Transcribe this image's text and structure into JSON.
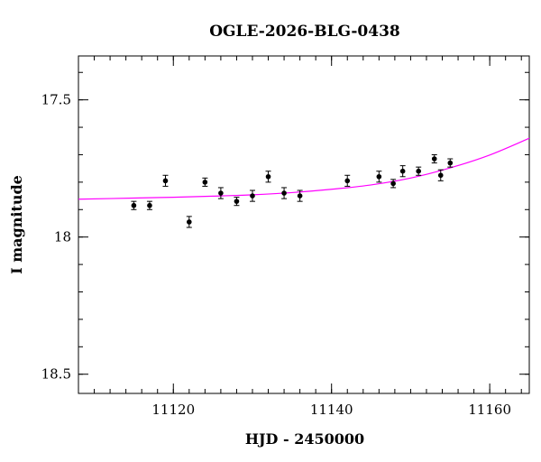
{
  "chart_data": {
    "type": "scatter",
    "title": "OGLE-2026-BLG-0438",
    "xlabel": "HJD - 2450000",
    "ylabel": "I magnitude",
    "xlim": [
      11108,
      11165
    ],
    "ylim": [
      18.57,
      17.34
    ],
    "y_inverted": true,
    "x_ticks": [
      11120,
      11140,
      11160
    ],
    "x_tick_labels": [
      "11120",
      "11140",
      "11160"
    ],
    "x_minor_step": 2,
    "y_ticks": [
      17.5,
      18,
      18.5
    ],
    "y_tick_labels": [
      "17.5",
      "18",
      "18.5"
    ],
    "y_minor_step": 0.1,
    "grid": false,
    "legend": "none",
    "series": [
      {
        "kind": "points_with_errorbars",
        "color": "#000000",
        "points": [
          {
            "x": 11115.0,
            "y": 17.885,
            "err": 0.015
          },
          {
            "x": 11117.0,
            "y": 17.885,
            "err": 0.015
          },
          {
            "x": 11119.0,
            "y": 17.795,
            "err": 0.02
          },
          {
            "x": 11122.0,
            "y": 17.945,
            "err": 0.02
          },
          {
            "x": 11124.0,
            "y": 17.8,
            "err": 0.015
          },
          {
            "x": 11126.0,
            "y": 17.84,
            "err": 0.02
          },
          {
            "x": 11128.0,
            "y": 17.87,
            "err": 0.015
          },
          {
            "x": 11130.0,
            "y": 17.85,
            "err": 0.02
          },
          {
            "x": 11132.0,
            "y": 17.78,
            "err": 0.02
          },
          {
            "x": 11134.0,
            "y": 17.84,
            "err": 0.02
          },
          {
            "x": 11136.0,
            "y": 17.85,
            "err": 0.02
          },
          {
            "x": 11142.0,
            "y": 17.795,
            "err": 0.02
          },
          {
            "x": 11146.0,
            "y": 17.78,
            "err": 0.02
          },
          {
            "x": 11147.8,
            "y": 17.805,
            "err": 0.015
          },
          {
            "x": 11149.0,
            "y": 17.76,
            "err": 0.02
          },
          {
            "x": 11151.0,
            "y": 17.76,
            "err": 0.015
          },
          {
            "x": 11153.0,
            "y": 17.715,
            "err": 0.015
          },
          {
            "x": 11153.8,
            "y": 17.775,
            "err": 0.02
          },
          {
            "x": 11155.0,
            "y": 17.73,
            "err": 0.015
          }
        ]
      },
      {
        "kind": "model_curve",
        "color": "#ff00ff",
        "points": [
          {
            "x": 11108,
            "y": 17.862
          },
          {
            "x": 11115,
            "y": 17.858
          },
          {
            "x": 11120,
            "y": 17.855
          },
          {
            "x": 11125,
            "y": 17.851
          },
          {
            "x": 11130,
            "y": 17.846
          },
          {
            "x": 11135,
            "y": 17.838
          },
          {
            "x": 11140,
            "y": 17.826
          },
          {
            "x": 11145,
            "y": 17.81
          },
          {
            "x": 11150,
            "y": 17.785
          },
          {
            "x": 11155,
            "y": 17.748
          },
          {
            "x": 11160,
            "y": 17.701
          },
          {
            "x": 11165,
            "y": 17.64
          }
        ]
      }
    ]
  }
}
